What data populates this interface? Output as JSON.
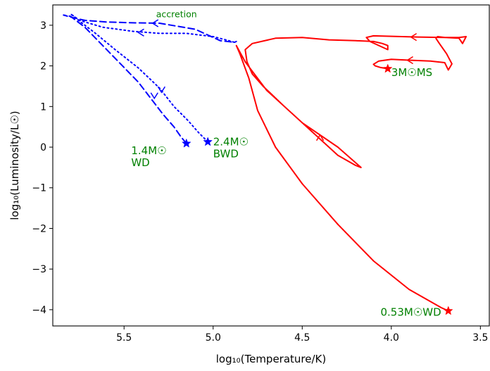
{
  "chart_data": {
    "type": "line",
    "title": "",
    "xlabel": "log₁₀(Temperature/K)",
    "ylabel": "log₁₀(Luminosity/L☉)",
    "xlim": [
      5.9,
      3.45
    ],
    "ylim": [
      -4.4,
      3.5
    ],
    "x_inverted": true,
    "grid": false,
    "legend": "none",
    "xticks": [
      5.5,
      5.0,
      4.5,
      4.0,
      3.5
    ],
    "xtick_labels": [
      "5.5",
      "5.0",
      "4.5",
      "4.0",
      "3.5"
    ],
    "yticks": [
      3,
      2,
      1,
      0,
      -1,
      -2,
      -3,
      -4
    ],
    "ytick_labels": [
      "3",
      "2",
      "1",
      "0",
      "−1",
      "−2",
      "−3",
      "−4"
    ],
    "colors": {
      "red_track": "#ff0000",
      "blue_track": "#0000ff",
      "annotation": "#008000"
    },
    "series": [
      {
        "key": "red",
        "color": "#ff0000",
        "style": "solid",
        "x": [
          4.02,
          4.06,
          4.09,
          4.1,
          4.07,
          4.0,
          3.9,
          3.78,
          3.7,
          3.68,
          3.66,
          3.69,
          3.73,
          3.75,
          3.74,
          3.7,
          3.62,
          3.58,
          3.6,
          3.62,
          3.7,
          3.85,
          4.03,
          4.1,
          4.14,
          4.12,
          4.02,
          4.02,
          4.05,
          4.1,
          4.2,
          4.35,
          4.5,
          4.65,
          4.78,
          4.82,
          4.81,
          4.78,
          4.72,
          4.6,
          4.45,
          4.3,
          4.2,
          4.17,
          4.3,
          4.5,
          4.7,
          4.82,
          4.87,
          4.85,
          4.8,
          4.75,
          4.65,
          4.5,
          4.3,
          4.1,
          3.9,
          3.72,
          3.68
        ],
        "y": [
          1.93,
          1.96,
          2.0,
          2.04,
          2.12,
          2.16,
          2.14,
          2.12,
          2.08,
          1.9,
          2.05,
          2.3,
          2.55,
          2.68,
          2.72,
          2.7,
          2.7,
          2.72,
          2.55,
          2.68,
          2.7,
          2.71,
          2.73,
          2.74,
          2.7,
          2.6,
          2.4,
          2.5,
          2.55,
          2.6,
          2.62,
          2.64,
          2.7,
          2.68,
          2.55,
          2.4,
          2.1,
          1.8,
          1.5,
          1.0,
          0.4,
          -0.2,
          -0.45,
          -0.5,
          0.0,
          0.6,
          1.4,
          2.1,
          2.5,
          2.3,
          1.7,
          0.9,
          0.0,
          -0.9,
          -1.9,
          -2.8,
          -3.5,
          -3.95,
          -4.03
        ],
        "start_marker": {
          "x": 4.02,
          "y": 1.93
        },
        "end_marker": {
          "x": 3.68,
          "y": -4.03
        }
      },
      {
        "key": "blue-dashed",
        "color": "#0000ff",
        "style": "dashed",
        "x": [
          5.15,
          5.18,
          5.22,
          5.28,
          5.35,
          5.42,
          5.52,
          5.62,
          5.72,
          5.8,
          5.84,
          5.8,
          5.72,
          5.6,
          5.45,
          5.3,
          5.1,
          4.96,
          4.88,
          4.87
        ],
        "y": [
          0.09,
          0.25,
          0.5,
          0.8,
          1.2,
          1.6,
          2.05,
          2.5,
          2.95,
          3.22,
          3.25,
          3.2,
          3.12,
          3.08,
          3.06,
          3.05,
          2.9,
          2.62,
          2.58,
          2.6
        ],
        "start_marker": {
          "x": 5.15,
          "y": 0.09
        }
      },
      {
        "key": "blue-dotted",
        "color": "#0000ff",
        "style": "dotted",
        "x": [
          5.03,
          5.08,
          5.14,
          5.22,
          5.3,
          5.42,
          5.55,
          5.66,
          5.75,
          5.8,
          5.75,
          5.62,
          5.45,
          5.3,
          5.15,
          5.0,
          4.92,
          4.88
        ],
        "y": [
          0.13,
          0.35,
          0.65,
          1.0,
          1.45,
          1.95,
          2.4,
          2.8,
          3.1,
          3.28,
          3.12,
          2.95,
          2.85,
          2.8,
          2.8,
          2.72,
          2.63,
          2.58
        ],
        "start_marker": {
          "x": 5.03,
          "y": 0.13
        }
      }
    ],
    "arrows": [
      {
        "series": "red",
        "x": 3.91,
        "y": 2.14,
        "dir": "left"
      },
      {
        "series": "red",
        "x": 3.89,
        "y": 2.71,
        "dir": "left"
      },
      {
        "series": "red",
        "x": 4.4,
        "y": 0.3,
        "dir": "up"
      },
      {
        "series": "blue-dashed",
        "x": 5.33,
        "y": 1.2,
        "dir": "down"
      },
      {
        "series": "blue-dashed",
        "x": 5.34,
        "y": 3.05,
        "dir": "left"
      },
      {
        "series": "blue-dotted",
        "x": 5.29,
        "y": 1.35,
        "dir": "down"
      },
      {
        "series": "blue-dotted",
        "x": 5.42,
        "y": 2.82,
        "dir": "left"
      }
    ],
    "annotations": [
      {
        "line1": "3M☉MS",
        "line2": "",
        "x": 4.0,
        "y": 1.75,
        "color": "#008000",
        "anchor": "start",
        "size": "normal"
      },
      {
        "line1": "0.53M☉WD",
        "line2": "",
        "x": 3.72,
        "y": -4.15,
        "color": "#008000",
        "anchor": "end",
        "size": "normal"
      },
      {
        "line1": "1.4M☉",
        "line2": "WD",
        "x": 5.46,
        "y": -0.17,
        "color": "#008000",
        "anchor": "start",
        "size": "normal"
      },
      {
        "line1": "2.4M☉",
        "line2": "BWD",
        "x": 5.0,
        "y": 0.04,
        "color": "#008000",
        "anchor": "start",
        "size": "normal"
      },
      {
        "line1": "accretion",
        "line2": "",
        "x": 5.32,
        "y": 3.2,
        "color": "#008000",
        "anchor": "start",
        "size": "small"
      }
    ]
  }
}
